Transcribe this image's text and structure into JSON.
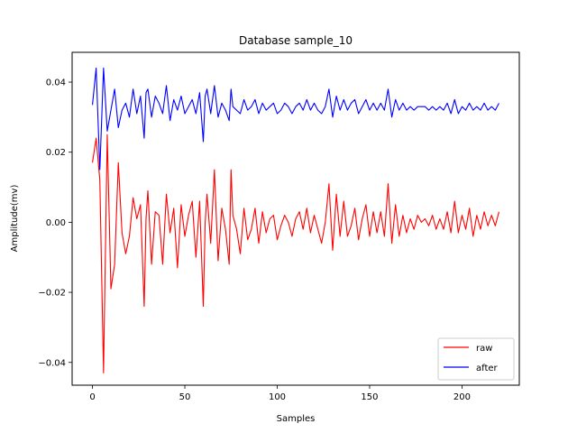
{
  "chart_data": {
    "type": "line",
    "title": "Database sample_10",
    "xlabel": "Samples",
    "ylabel": "Amplitude(mv)",
    "xlim": [
      -11,
      231
    ],
    "ylim": [
      -0.0465,
      0.0485
    ],
    "xticks": [
      0,
      50,
      100,
      150,
      200
    ],
    "xtick_labels": [
      "0",
      "50",
      "100",
      "150",
      "200"
    ],
    "yticks": [
      -0.04,
      -0.02,
      0.0,
      0.02,
      0.04
    ],
    "ytick_labels": [
      "−0.04",
      "−0.02",
      "0.00",
      "0.02",
      "0.04"
    ],
    "grid": false,
    "legend_position": "lower-right",
    "series": [
      {
        "name": "raw",
        "color": "#ff0000",
        "x": [
          0,
          2,
          4,
          6,
          8,
          10,
          12,
          14,
          16,
          18,
          20,
          22,
          24,
          26,
          28,
          29,
          30,
          32,
          34,
          36,
          38,
          40,
          42,
          44,
          46,
          48,
          50,
          52,
          54,
          56,
          58,
          60,
          61,
          62,
          64,
          66,
          68,
          70,
          72,
          74,
          75,
          76,
          78,
          80,
          82,
          84,
          86,
          88,
          90,
          92,
          94,
          96,
          98,
          100,
          102,
          104,
          106,
          108,
          110,
          112,
          114,
          116,
          118,
          120,
          122,
          124,
          126,
          128,
          130,
          132,
          134,
          136,
          138,
          140,
          142,
          144,
          146,
          148,
          150,
          152,
          154,
          156,
          158,
          160,
          162,
          164,
          166,
          168,
          170,
          172,
          174,
          176,
          178,
          180,
          182,
          184,
          186,
          188,
          190,
          192,
          194,
          196,
          198,
          200,
          202,
          204,
          206,
          208,
          210,
          212,
          214,
          216,
          218,
          220
        ],
        "values": [
          0.017,
          0.024,
          0.012,
          -0.043,
          0.025,
          -0.019,
          -0.012,
          0.017,
          -0.003,
          -0.009,
          -0.004,
          0.007,
          0.001,
          0.005,
          -0.024,
          0.001,
          0.009,
          -0.012,
          0.003,
          0.002,
          -0.012,
          0.008,
          -0.003,
          0.004,
          -0.013,
          0.005,
          -0.004,
          0.002,
          0.006,
          -0.01,
          0.006,
          -0.024,
          0.0,
          0.008,
          -0.006,
          0.015,
          -0.011,
          0.004,
          -0.002,
          -0.012,
          0.015,
          0.002,
          -0.002,
          -0.009,
          0.004,
          -0.005,
          -0.002,
          0.004,
          -0.006,
          0.003,
          -0.003,
          0.001,
          0.002,
          -0.005,
          -0.001,
          0.002,
          0.0,
          -0.004,
          0.001,
          0.003,
          -0.002,
          0.004,
          -0.003,
          0.002,
          -0.002,
          -0.006,
          0.0,
          0.011,
          -0.008,
          0.008,
          -0.004,
          0.006,
          -0.004,
          -0.001,
          0.004,
          -0.005,
          0.001,
          0.005,
          -0.004,
          0.003,
          -0.003,
          0.003,
          -0.004,
          0.011,
          -0.006,
          0.005,
          -0.004,
          0.002,
          -0.003,
          0.001,
          -0.002,
          0.002,
          0.0,
          0.001,
          -0.001,
          0.002,
          -0.002,
          0.001,
          -0.002,
          0.003,
          -0.003,
          0.006,
          -0.003,
          0.002,
          -0.002,
          0.004,
          -0.004,
          0.002,
          -0.002,
          0.003,
          -0.001,
          0.002,
          -0.001,
          0.003
        ]
      },
      {
        "name": "after",
        "color": "#0000ff",
        "x": [
          0,
          2,
          4,
          6,
          8,
          10,
          12,
          14,
          16,
          18,
          20,
          22,
          24,
          26,
          28,
          29,
          30,
          32,
          34,
          36,
          38,
          40,
          42,
          44,
          46,
          48,
          50,
          52,
          54,
          56,
          58,
          60,
          61,
          62,
          64,
          66,
          68,
          70,
          72,
          74,
          75,
          76,
          78,
          80,
          82,
          84,
          86,
          88,
          90,
          92,
          94,
          96,
          98,
          100,
          102,
          104,
          106,
          108,
          110,
          112,
          114,
          116,
          118,
          120,
          122,
          124,
          126,
          128,
          130,
          132,
          134,
          136,
          138,
          140,
          142,
          144,
          146,
          148,
          150,
          152,
          154,
          156,
          158,
          160,
          162,
          164,
          166,
          168,
          170,
          172,
          174,
          176,
          178,
          180,
          182,
          184,
          186,
          188,
          190,
          192,
          194,
          196,
          198,
          200,
          202,
          204,
          206,
          208,
          210,
          212,
          214,
          216,
          218,
          220
        ],
        "values": [
          0.0335,
          0.044,
          0.015,
          0.044,
          0.026,
          0.032,
          0.038,
          0.027,
          0.032,
          0.034,
          0.03,
          0.038,
          0.031,
          0.036,
          0.024,
          0.037,
          0.038,
          0.03,
          0.036,
          0.034,
          0.031,
          0.039,
          0.029,
          0.035,
          0.032,
          0.036,
          0.031,
          0.033,
          0.035,
          0.031,
          0.037,
          0.023,
          0.036,
          0.038,
          0.031,
          0.039,
          0.03,
          0.034,
          0.032,
          0.029,
          0.038,
          0.033,
          0.032,
          0.031,
          0.035,
          0.032,
          0.033,
          0.035,
          0.031,
          0.034,
          0.032,
          0.033,
          0.034,
          0.031,
          0.032,
          0.034,
          0.033,
          0.031,
          0.033,
          0.034,
          0.032,
          0.035,
          0.032,
          0.034,
          0.032,
          0.031,
          0.033,
          0.038,
          0.03,
          0.036,
          0.032,
          0.035,
          0.032,
          0.034,
          0.035,
          0.031,
          0.033,
          0.035,
          0.032,
          0.034,
          0.032,
          0.034,
          0.032,
          0.038,
          0.03,
          0.035,
          0.032,
          0.034,
          0.032,
          0.033,
          0.032,
          0.033,
          0.033,
          0.033,
          0.032,
          0.033,
          0.032,
          0.033,
          0.032,
          0.034,
          0.031,
          0.035,
          0.031,
          0.033,
          0.032,
          0.034,
          0.032,
          0.033,
          0.032,
          0.034,
          0.032,
          0.033,
          0.032,
          0.034
        ]
      }
    ]
  }
}
